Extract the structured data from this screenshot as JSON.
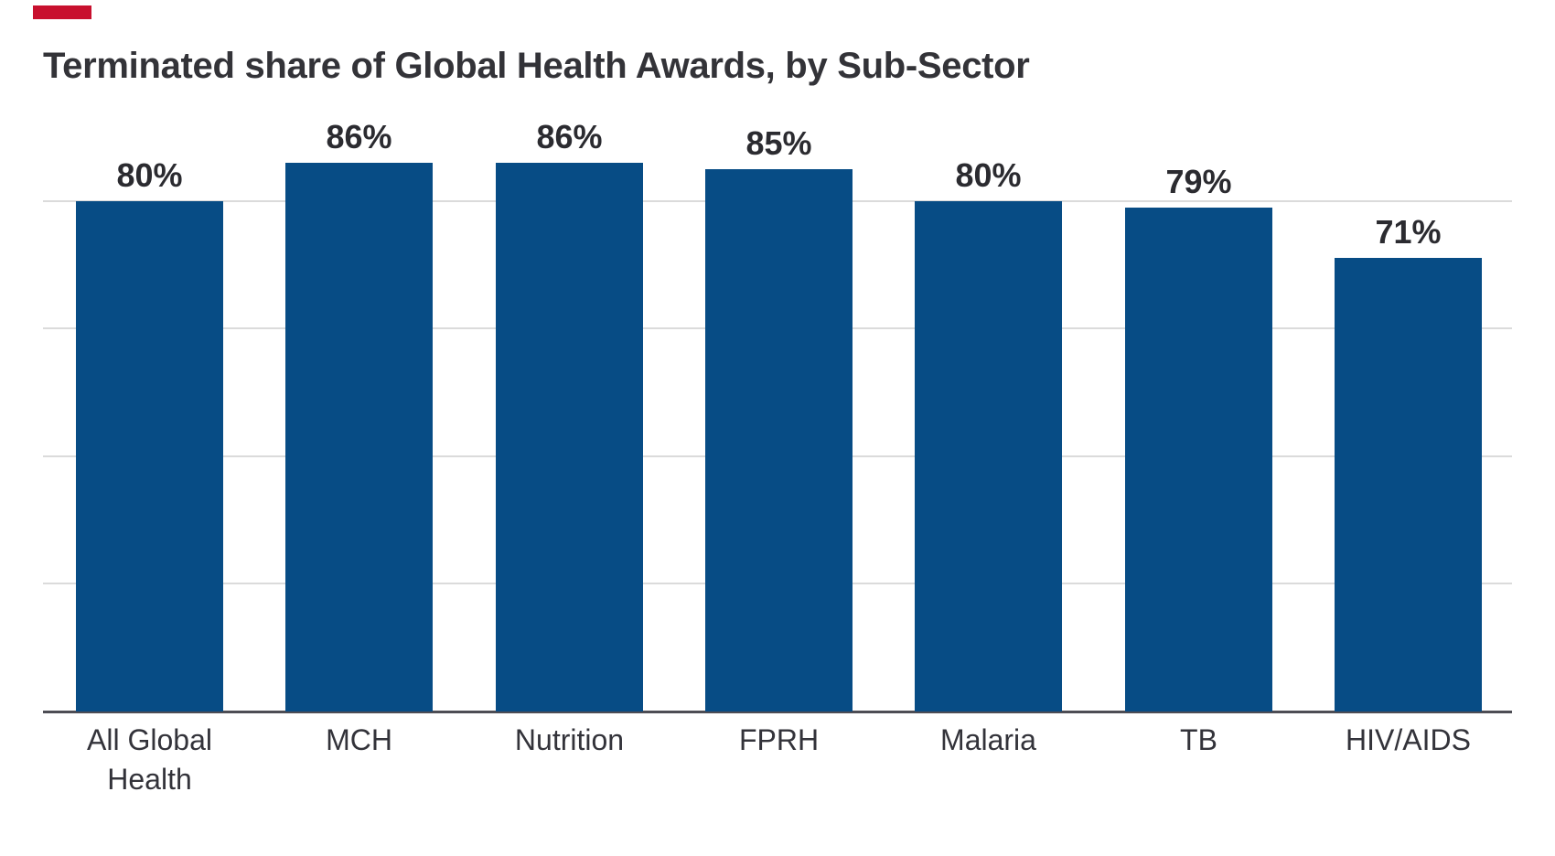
{
  "title": "Terminated share of Global Health Awards, by Sub-Sector",
  "colors": {
    "background": "#FFFFFF",
    "accent": "#C8102E",
    "bar": "#074C85",
    "title_text": "#333338",
    "value_text": "#2B2B30",
    "axis_text": "#33333A",
    "gridline": "#DBDBDB",
    "baseline": "#4D4D54"
  },
  "chart_data": {
    "type": "bar",
    "title": "Terminated share of Global Health Awards, by Sub-Sector",
    "categories": [
      "All Global Health",
      "MCH",
      "Nutrition",
      "FPRH",
      "Malaria",
      "TB",
      "HIV/AIDS"
    ],
    "values": [
      80,
      86,
      86,
      85,
      80,
      79,
      71
    ],
    "data_labels": [
      "80%",
      "86%",
      "86%",
      "85%",
      "80%",
      "79%",
      "71%"
    ],
    "ylim": [
      0,
      100
    ],
    "gridline_values": [
      20,
      40,
      60,
      80
    ],
    "y_axis_tick_labels": "none",
    "grid": "horizontal",
    "legend": "none",
    "xlabel": "",
    "ylabel": ""
  }
}
